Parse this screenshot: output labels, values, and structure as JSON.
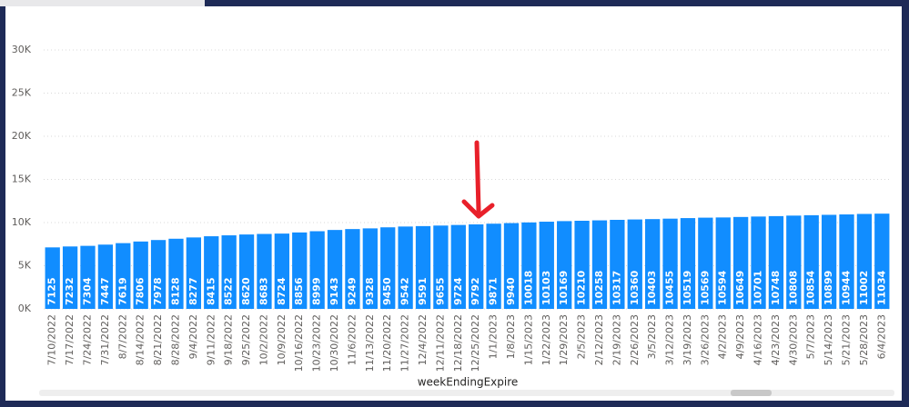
{
  "chart_data": {
    "type": "bar",
    "x_label": "weekEndingExpire",
    "categories": [
      "7/10/2022",
      "7/17/2022",
      "7/24/2022",
      "7/31/2022",
      "8/7/2022",
      "8/14/2022",
      "8/21/2022",
      "8/28/2022",
      "9/4/2022",
      "9/11/2022",
      "9/18/2022",
      "9/25/2022",
      "10/2/2022",
      "10/9/2022",
      "10/16/2022",
      "10/23/2022",
      "10/30/2022",
      "11/6/2022",
      "11/13/2022",
      "11/20/2022",
      "11/27/2022",
      "12/4/2022",
      "12/11/2022",
      "12/18/2022",
      "12/25/2022",
      "1/1/2023",
      "1/8/2023",
      "1/15/2023",
      "1/22/2023",
      "1/29/2023",
      "2/5/2023",
      "2/12/2023",
      "2/19/2023",
      "2/26/2023",
      "3/5/2023",
      "3/12/2023",
      "3/19/2023",
      "3/26/2023",
      "4/2/2023",
      "4/9/2023",
      "4/16/2023",
      "4/23/2023",
      "4/30/2023",
      "5/7/2023",
      "5/14/2023",
      "5/21/2023",
      "5/28/2023",
      "6/4/2023"
    ],
    "values": [
      7125,
      7232,
      7304,
      7447,
      7619,
      7806,
      7978,
      8128,
      8277,
      8415,
      8522,
      8620,
      8683,
      8724,
      8856,
      8999,
      9143,
      9249,
      9328,
      9450,
      9542,
      9591,
      9655,
      9724,
      9792,
      9871,
      9940,
      10018,
      10103,
      10169,
      10210,
      10258,
      10317,
      10360,
      10403,
      10455,
      10519,
      10569,
      10594,
      10649,
      10701,
      10748,
      10808,
      10854,
      10899,
      10944,
      11002,
      11034
    ],
    "color": "#118dff",
    "ylim": [
      0,
      33000
    ],
    "yticks": [
      {
        "value": 0,
        "label": "0K"
      },
      {
        "value": 5000,
        "label": "5K"
      },
      {
        "value": 10000,
        "label": "10K"
      },
      {
        "value": 15000,
        "label": "15K"
      },
      {
        "value": 20000,
        "label": "20K"
      },
      {
        "value": 25000,
        "label": "25K"
      },
      {
        "value": 30000,
        "label": "30K"
      }
    ],
    "grid": true
  }
}
